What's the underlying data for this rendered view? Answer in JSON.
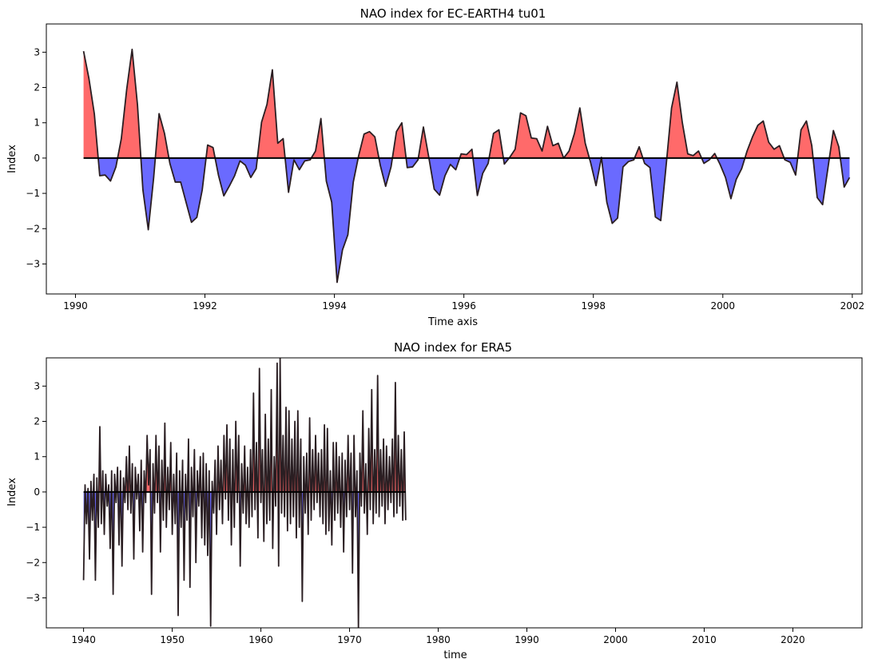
{
  "chart_data": [
    {
      "type": "area",
      "title": "NAO index for EC-EARTH4 tu01",
      "xlabel": "Time axis",
      "ylabel": "Index",
      "xlim": [
        1989.55,
        2002.15
      ],
      "ylim": [
        -3.85,
        3.8
      ],
      "xticks": [
        1990,
        1992,
        1994,
        1996,
        1998,
        2000,
        2002
      ],
      "xtick_labels": [
        "1990",
        "1992",
        "1994",
        "1996",
        "1998",
        "2000",
        "2002"
      ],
      "yticks": [
        3,
        2,
        1,
        0,
        -1,
        -2,
        -3
      ],
      "ytick_labels": [
        "3",
        "2",
        "1",
        "0",
        "−1",
        "−2",
        "−3"
      ],
      "baseline": 0,
      "colors": {
        "positive": "#ff6a6a",
        "negative": "#6a6aff",
        "line": "#2a1e22",
        "baseline": "#000000"
      },
      "x_start": 1990.125,
      "x_step": 0.08333,
      "values": [
        3.03,
        2.25,
        1.25,
        -0.5,
        -0.48,
        -0.65,
        -0.25,
        0.55,
        1.95,
        3.08,
        1.5,
        -0.9,
        -2.03,
        -0.55,
        1.26,
        0.7,
        -0.15,
        -0.68,
        -0.68,
        -1.25,
        -1.82,
        -1.68,
        -0.9,
        0.37,
        0.3,
        -0.48,
        -1.07,
        -0.8,
        -0.5,
        -0.08,
        -0.2,
        -0.55,
        -0.3,
        1.02,
        1.52,
        2.5,
        0.42,
        0.55,
        -0.97,
        -0.05,
        -0.33,
        -0.08,
        -0.05,
        0.2,
        1.12,
        -0.65,
        -1.25,
        -3.52,
        -2.6,
        -2.17,
        -0.68,
        0.07,
        0.68,
        0.75,
        0.6,
        -0.2,
        -0.8,
        -0.25,
        0.75,
        1.0,
        -0.27,
        -0.25,
        -0.05,
        0.88,
        0.02,
        -0.88,
        -1.05,
        -0.5,
        -0.18,
        -0.33,
        0.12,
        0.1,
        0.25,
        -1.06,
        -0.43,
        -0.15,
        0.7,
        0.8,
        -0.17,
        0.02,
        0.25,
        1.28,
        1.2,
        0.57,
        0.55,
        0.2,
        0.9,
        0.35,
        0.42,
        0.0,
        0.2,
        0.7,
        1.42,
        0.42,
        -0.13,
        -0.78,
        0.02,
        -1.25,
        -1.85,
        -1.7,
        -0.25,
        -0.1,
        -0.05,
        0.32,
        -0.15,
        -0.27,
        -1.67,
        -1.77,
        -0.2,
        1.42,
        2.15,
        1.0,
        0.12,
        0.07,
        0.2,
        -0.15,
        -0.05,
        0.13,
        -0.18,
        -0.55,
        -1.15,
        -0.6,
        -0.3,
        0.2,
        0.6,
        0.93,
        1.05,
        0.45,
        0.25,
        0.35,
        -0.05,
        -0.12,
        -0.48,
        0.8,
        1.05,
        0.35,
        -1.12,
        -1.32,
        -0.27,
        0.78,
        0.32,
        -0.82,
        -0.55
      ]
    },
    {
      "type": "area",
      "title": "NAO index for ERA5",
      "xlabel": "time",
      "ylabel": "Index",
      "xlim": [
        1935.8,
        2027.8
      ],
      "ylim": [
        -3.85,
        3.8
      ],
      "xticks": [
        1940,
        1950,
        1960,
        1970,
        1980,
        1990,
        2000,
        2010,
        2020
      ],
      "xtick_labels": [
        "1940",
        "1950",
        "1960",
        "1970",
        "1980",
        "1990",
        "2000",
        "2010",
        "2020"
      ],
      "yticks": [
        3,
        2,
        1,
        0,
        -1,
        -2,
        -3
      ],
      "ytick_labels": [
        "3",
        "2",
        "1",
        "0",
        "−1",
        "−2",
        "−3"
      ],
      "baseline": 0,
      "colors": {
        "positive": "#ff6a6a",
        "negative": "#6a6aff",
        "line": "#2a1e22",
        "line_negative": "#1e2238",
        "baseline": "#000000"
      },
      "x_start": 1940.0,
      "x_step": 0.16667,
      "values": [
        -2.5,
        0.2,
        -0.9,
        0.1,
        -1.9,
        0.3,
        -0.8,
        0.5,
        -2.5,
        0.4,
        -1.0,
        1.85,
        -0.9,
        0.6,
        -1.2,
        0.5,
        -0.4,
        0.2,
        -1.6,
        0.6,
        -2.9,
        0.5,
        -0.3,
        0.7,
        -1.5,
        0.6,
        -2.1,
        0.4,
        -0.3,
        1.0,
        -0.5,
        1.3,
        -0.6,
        0.8,
        -1.9,
        0.7,
        -0.2,
        0.5,
        -1.1,
        0.9,
        -1.7,
        0.6,
        -0.3,
        1.6,
        0.2,
        1.2,
        -2.9,
        0.8,
        -0.6,
        1.6,
        -0.3,
        1.3,
        -1.7,
        0.9,
        -0.8,
        1.95,
        -1.0,
        0.7,
        -0.5,
        1.4,
        -1.2,
        0.5,
        -0.9,
        1.1,
        -3.5,
        0.6,
        -1.0,
        0.9,
        -2.5,
        0.5,
        -0.8,
        1.5,
        -2.7,
        0.7,
        -0.7,
        1.2,
        -2.0,
        0.6,
        -0.4,
        1.0,
        -1.3,
        1.1,
        -1.5,
        0.8,
        -1.8,
        0.6,
        -3.8,
        0.3,
        -0.6,
        0.9,
        -1.2,
        1.3,
        -0.5,
        0.9,
        -0.9,
        1.6,
        -0.2,
        1.9,
        -0.8,
        1.5,
        -1.5,
        1.2,
        -1.0,
        2.0,
        -0.3,
        1.6,
        -2.1,
        0.8,
        -0.6,
        1.3,
        -0.9,
        0.7,
        -1.0,
        1.2,
        -0.7,
        2.8,
        -0.5,
        1.4,
        -1.3,
        3.5,
        -0.3,
        1.2,
        -1.4,
        2.2,
        -0.9,
        1.5,
        -0.8,
        2.9,
        -1.6,
        1.0,
        -0.4,
        3.65,
        -2.1,
        3.8,
        -0.6,
        1.6,
        -0.7,
        2.4,
        -1.1,
        2.3,
        -0.9,
        1.5,
        -0.7,
        2.0,
        -1.3,
        2.3,
        -1.0,
        1.5,
        -3.1,
        1.0,
        -0.6,
        1.1,
        -1.2,
        2.1,
        -0.8,
        1.2,
        -0.5,
        1.6,
        -0.3,
        1.1,
        -0.7,
        1.2,
        -0.9,
        1.9,
        -1.2,
        1.8,
        -1.1,
        0.6,
        -1.5,
        1.4,
        -0.8,
        1.4,
        -0.6,
        1.0,
        -1.0,
        1.1,
        -1.7,
        0.9,
        -0.7,
        1.6,
        -0.5,
        1.1,
        -2.3,
        1.6,
        -0.7,
        0.6,
        -3.85,
        1.1,
        -0.4,
        2.3,
        -0.6,
        0.8,
        -1.2,
        1.8,
        -0.5,
        2.9,
        -0.9,
        1.2,
        -0.6,
        3.3,
        -0.7,
        1.2,
        -0.4,
        1.5,
        -0.9,
        1.3,
        -0.5,
        1.0,
        -0.3,
        1.5,
        -0.7,
        3.1,
        -0.6,
        1.6,
        -0.4,
        1.2,
        -0.8,
        1.7,
        -0.8
      ]
    }
  ]
}
